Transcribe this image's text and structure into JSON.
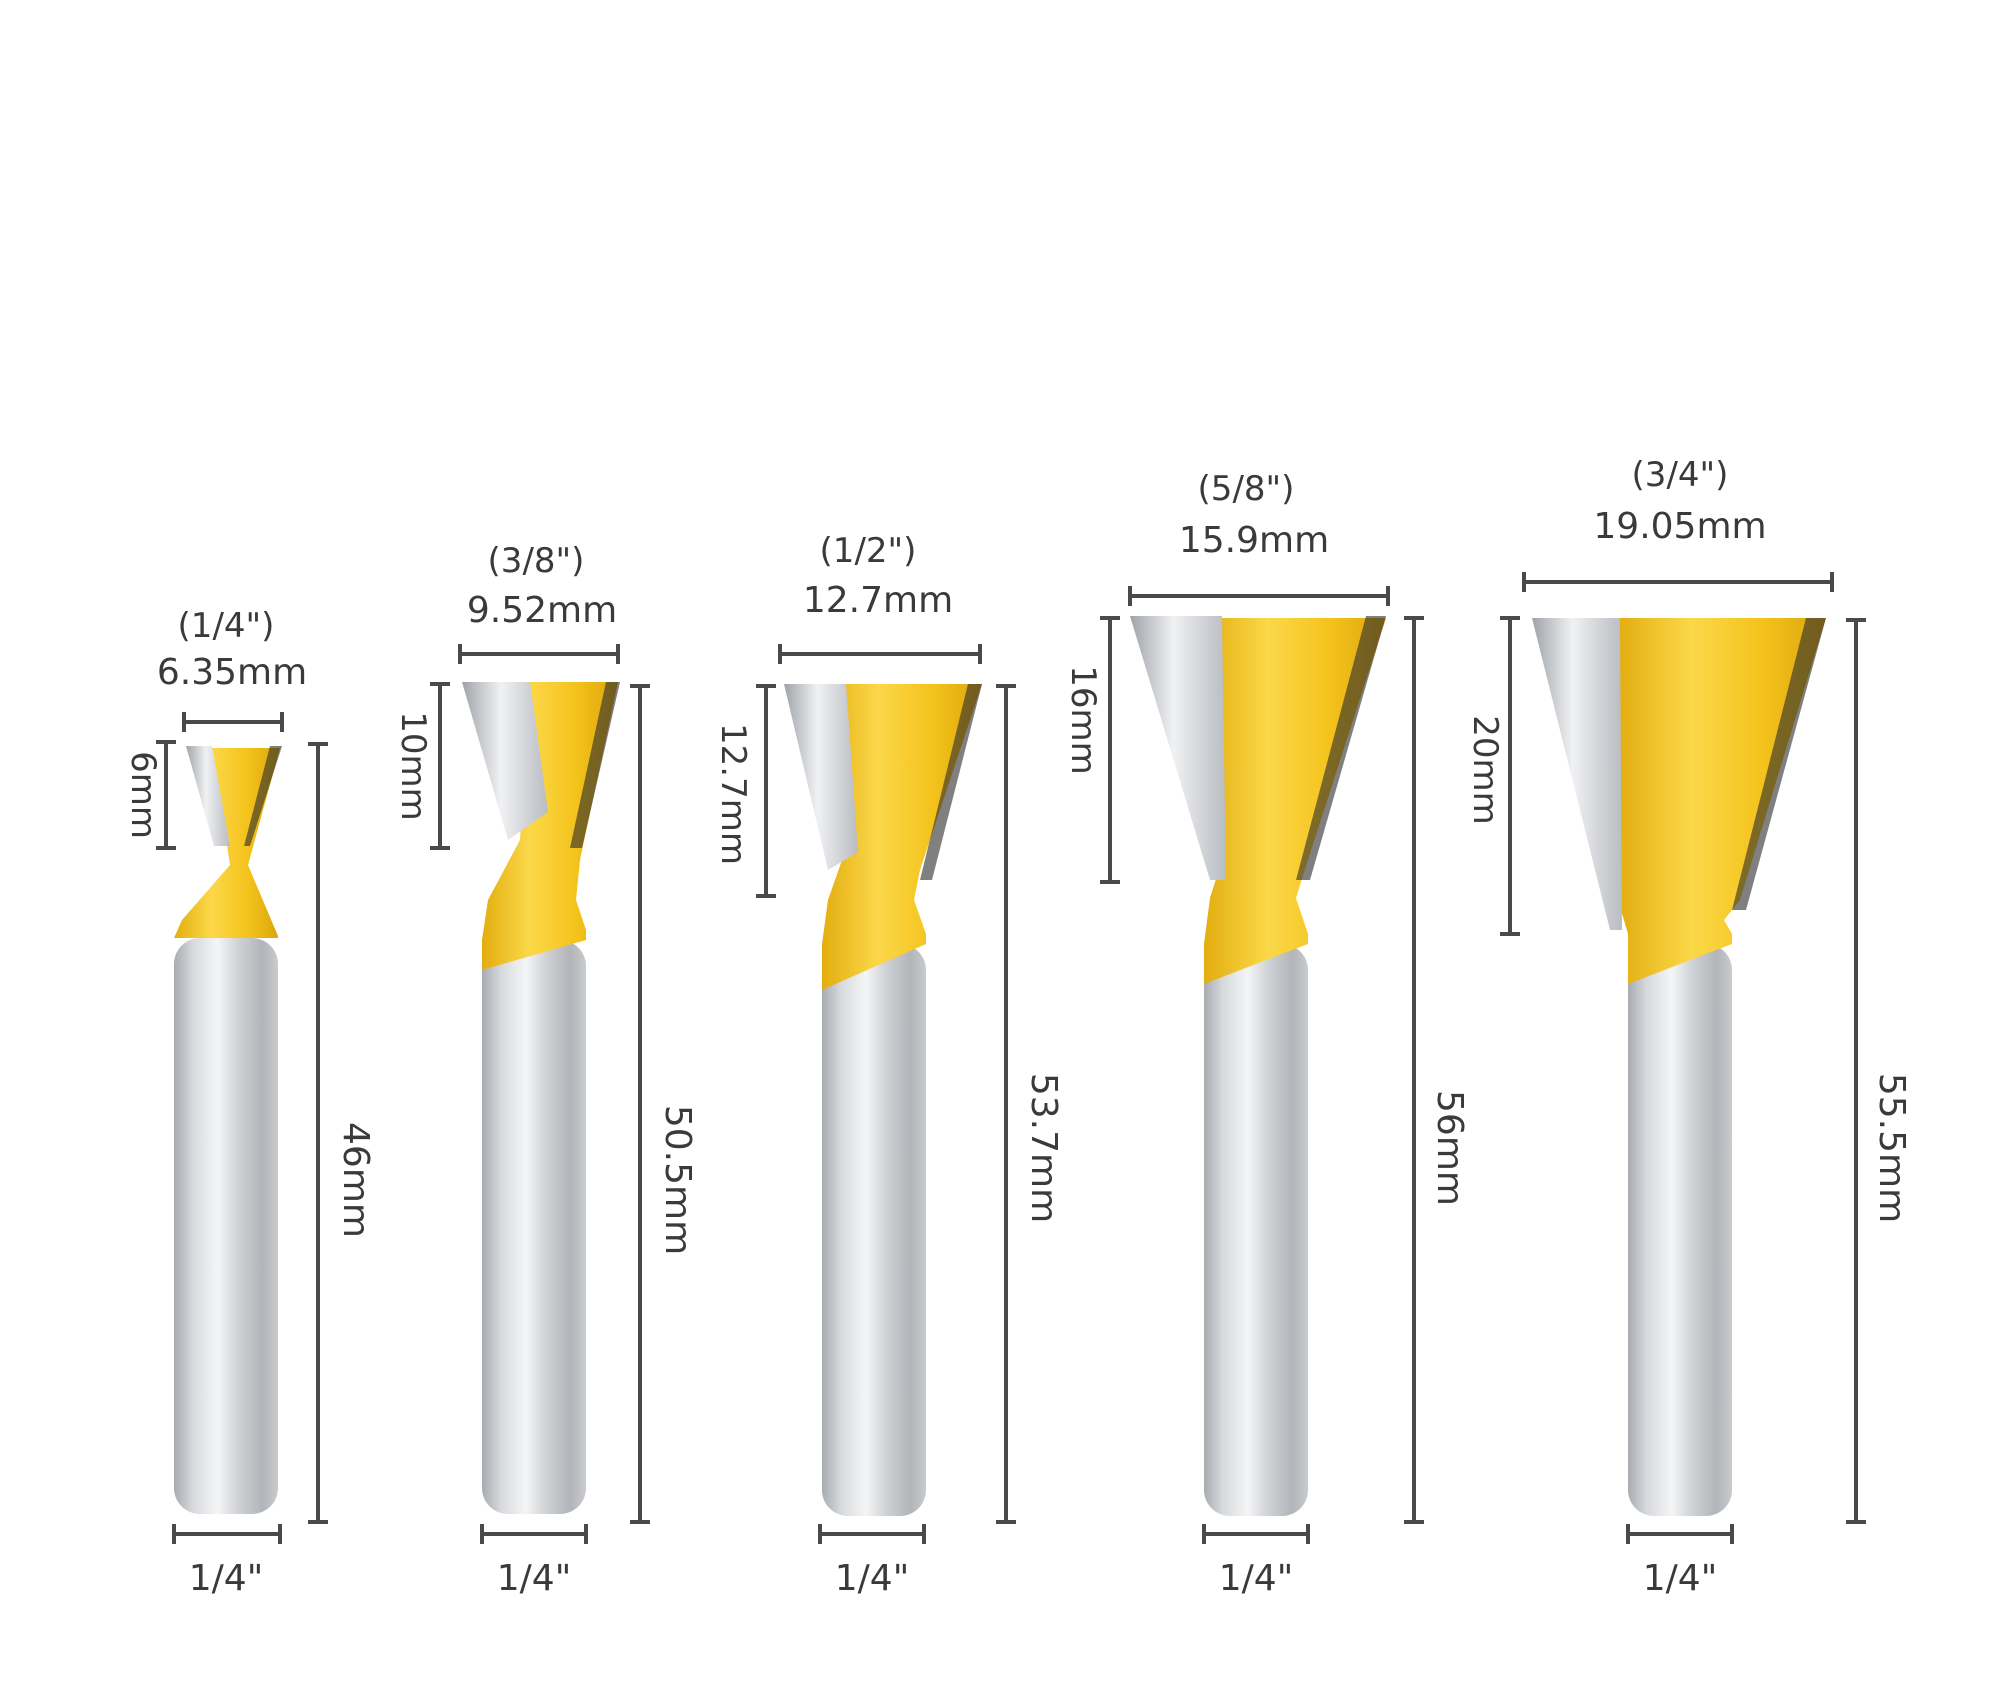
{
  "colors": {
    "body_yellow": "#F4C21B",
    "body_yellow_light": "#FBD849",
    "body_yellow_dark": "#D9A50C",
    "carbide_light": "#F2F2F4",
    "carbide_mid": "#B8BBC0",
    "shank_light": "#EEEFF1",
    "shank_dark": "#A4A7AC",
    "dimension_line": "#4A4A4A",
    "label_text": "#3A3A3A"
  },
  "bits": [
    {
      "diameter_inch": "(1/4\")",
      "diameter_mm": "6.35mm",
      "cut_height": "6mm",
      "overall_length": "46mm",
      "shank": "1/4\""
    },
    {
      "diameter_inch": "(3/8\")",
      "diameter_mm": "9.52mm",
      "cut_height": "10mm",
      "overall_length": "50.5mm",
      "shank": "1/4\""
    },
    {
      "diameter_inch": "(1/2\")",
      "diameter_mm": "12.7mm",
      "cut_height": "12.7mm",
      "overall_length": "53.7mm",
      "shank": "1/4\""
    },
    {
      "diameter_inch": "(5/8\")",
      "diameter_mm": "15.9mm",
      "cut_height": "16mm",
      "overall_length": "56mm",
      "shank": "1/4\""
    },
    {
      "diameter_inch": "(3/4\")",
      "diameter_mm": "19.05mm",
      "cut_height": "20mm",
      "overall_length": "55.5mm",
      "shank": "1/4\""
    }
  ]
}
